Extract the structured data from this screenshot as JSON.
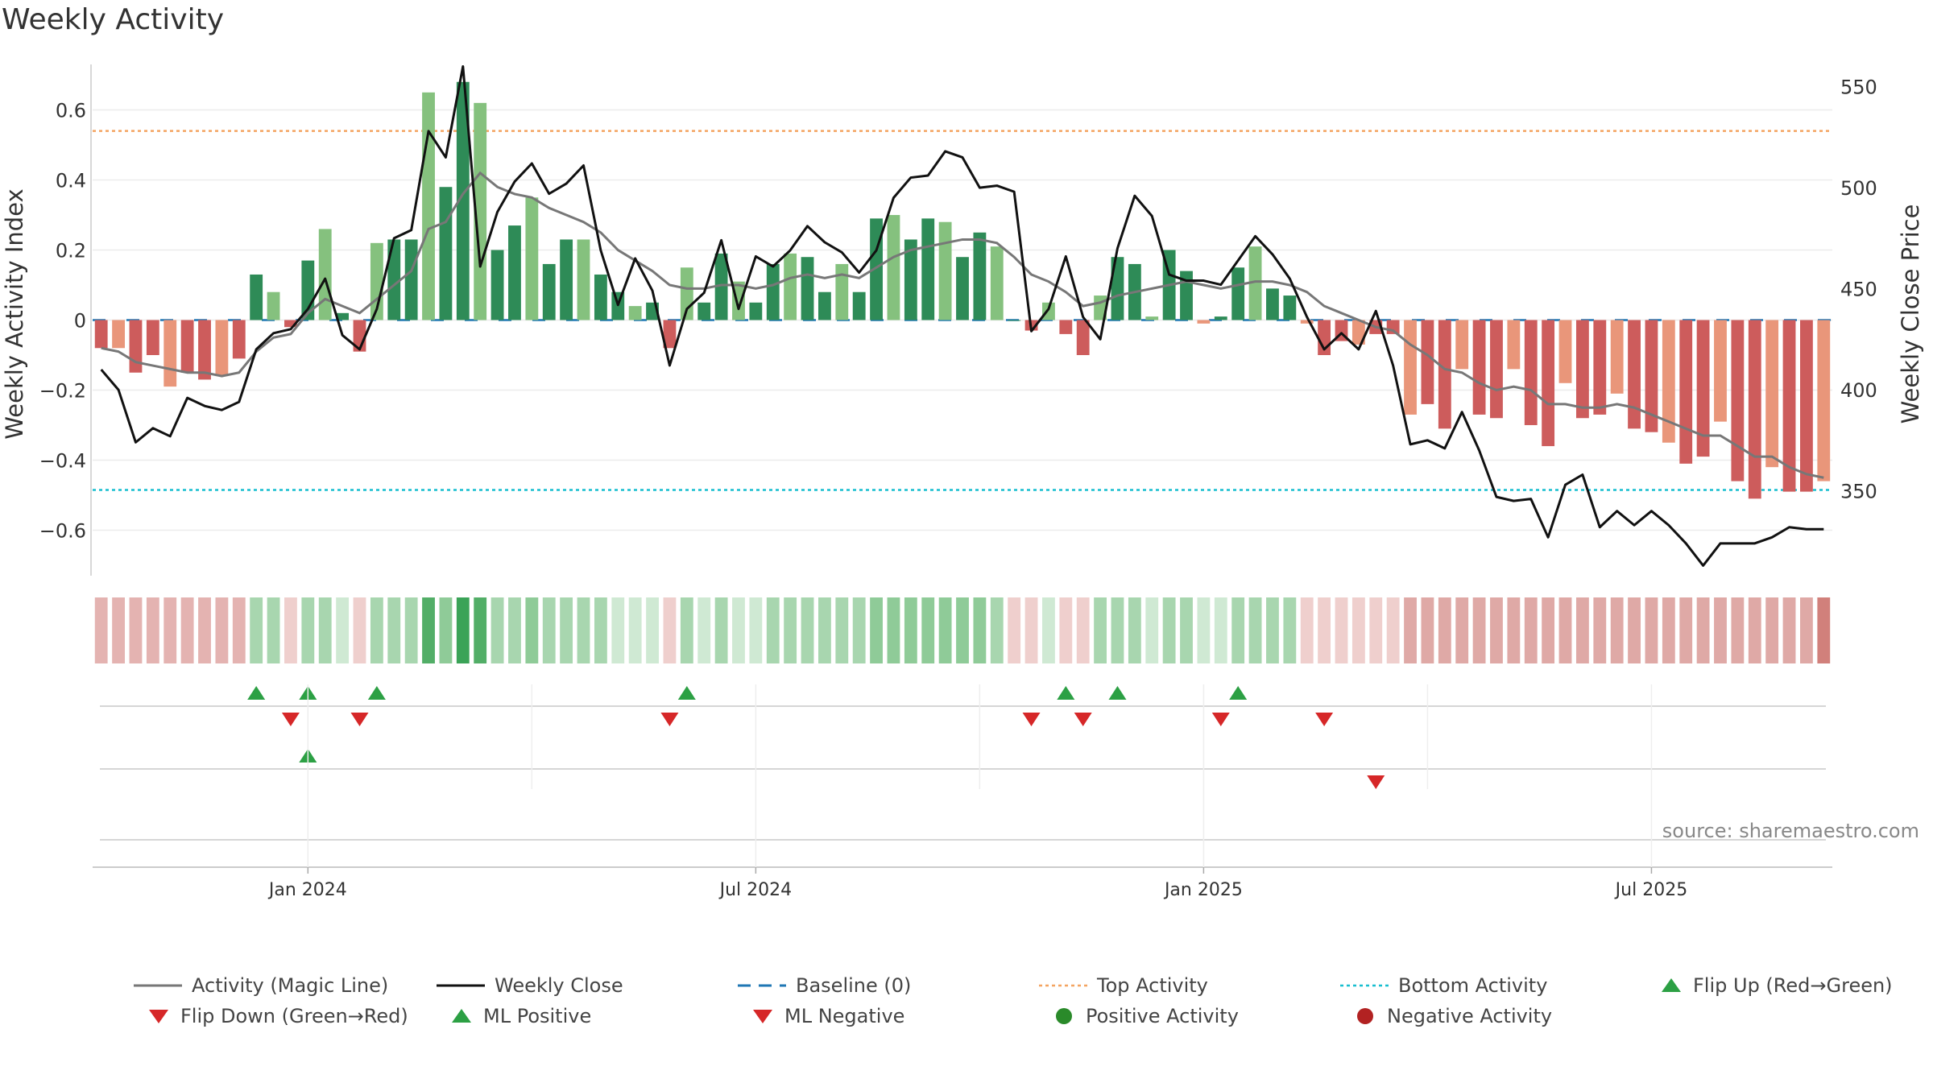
{
  "title": "Weekly Activity",
  "source": "source: sharemaestro.com",
  "colors": {
    "strong_green": "#2e8b57",
    "light_green": "#85c17e",
    "strong_red": "#cd5c5c",
    "light_red": "#e9967a",
    "magic_line": "#777777",
    "close_line": "#111111",
    "baseline": "#1f77b4",
    "top": "#f4a460",
    "bottom": "#17becf",
    "marker_green": "#2ca044",
    "marker_red": "#d62728"
  },
  "legend": {
    "magic_line": "Activity (Magic Line)",
    "weekly_close": "Weekly Close",
    "baseline": "Baseline (0)",
    "top_activity": "Top Activity",
    "bottom_activity": "Bottom Activity",
    "flip_up": "Flip Up (Red→Green)",
    "flip_down": "Flip Down (Green→Red)",
    "ml_positive": "ML Positive",
    "ml_negative": "ML Negative",
    "positive_activity": "Positive Activity",
    "negative_activity": "Negative Activity"
  },
  "chart_data": {
    "type": "bar",
    "x_tick_labels": [
      "Jan 2024",
      "Jul 2024",
      "Jan 2025",
      "Jul 2025"
    ],
    "x_tick_week_index": [
      12,
      38,
      64,
      90
    ],
    "ylabel_left": "Weekly Activity Index",
    "ylabel_right": "Weekly Close Price",
    "ylim_left": [
      -0.73,
      0.73
    ],
    "ylim_right": [
      308,
      561
    ],
    "yticks_left": [
      0.6,
      0.4,
      0.2,
      0,
      -0.2,
      -0.4,
      -0.6
    ],
    "ytick_labels_left": [
      "0.6",
      "0.4",
      "0.2",
      "0",
      "−0.2",
      "−0.4",
      "−0.6"
    ],
    "yticks_right": [
      550,
      500,
      450,
      400,
      350
    ],
    "ytick_labels_right": [
      "550",
      "500",
      "450",
      "400",
      "350"
    ],
    "top_activity": 0.54,
    "bottom_activity": -0.485,
    "baseline": 0,
    "activity": [
      -0.08,
      -0.08,
      -0.15,
      -0.1,
      -0.19,
      -0.15,
      -0.17,
      -0.16,
      -0.11,
      0.13,
      0.08,
      -0.02,
      0.17,
      0.26,
      0.02,
      -0.09,
      0.22,
      0.23,
      0.23,
      0.65,
      0.38,
      0.68,
      0.62,
      0.2,
      0.27,
      0.35,
      0.16,
      0.23,
      0.23,
      0.13,
      0.08,
      0.04,
      0.05,
      -0.08,
      0.15,
      0.05,
      0.19,
      0.11,
      0.05,
      0.16,
      0.19,
      0.18,
      0.08,
      0.16,
      0.08,
      0.29,
      0.3,
      0.23,
      0.29,
      0.28,
      0.18,
      0.25,
      0.21,
      0.0,
      -0.03,
      0.05,
      -0.04,
      -0.1,
      0.07,
      0.18,
      0.16,
      0.01,
      0.2,
      0.14,
      -0.01,
      0.01,
      0.15,
      0.21,
      0.09,
      0.07,
      -0.01,
      -0.1,
      -0.06,
      -0.07,
      -0.04,
      -0.04,
      -0.27,
      -0.24,
      -0.31,
      -0.14,
      -0.27,
      -0.28,
      -0.14,
      -0.3,
      -0.36,
      -0.18,
      -0.28,
      -0.27,
      -0.21,
      -0.31,
      -0.32,
      -0.35,
      -0.41,
      -0.39,
      -0.29,
      -0.46,
      -0.51,
      -0.42,
      -0.49,
      -0.49,
      -0.46
    ],
    "magic_line": [
      -0.08,
      -0.09,
      -0.12,
      -0.13,
      -0.14,
      -0.15,
      -0.15,
      -0.16,
      -0.15,
      -0.09,
      -0.05,
      -0.04,
      0.02,
      0.06,
      0.04,
      0.02,
      0.06,
      0.1,
      0.14,
      0.26,
      0.28,
      0.36,
      0.42,
      0.38,
      0.36,
      0.35,
      0.32,
      0.3,
      0.28,
      0.25,
      0.2,
      0.17,
      0.14,
      0.1,
      0.09,
      0.09,
      0.1,
      0.1,
      0.09,
      0.1,
      0.12,
      0.13,
      0.12,
      0.13,
      0.12,
      0.15,
      0.18,
      0.2,
      0.21,
      0.22,
      0.23,
      0.23,
      0.22,
      0.18,
      0.13,
      0.11,
      0.08,
      0.04,
      0.05,
      0.07,
      0.08,
      0.09,
      0.1,
      0.11,
      0.1,
      0.09,
      0.1,
      0.11,
      0.11,
      0.1,
      0.08,
      0.04,
      0.02,
      0.0,
      -0.02,
      -0.03,
      -0.07,
      -0.1,
      -0.14,
      -0.15,
      -0.18,
      -0.2,
      -0.19,
      -0.2,
      -0.24,
      -0.24,
      -0.25,
      -0.25,
      -0.24,
      -0.25,
      -0.27,
      -0.29,
      -0.31,
      -0.33,
      -0.33,
      -0.36,
      -0.39,
      -0.39,
      -0.42,
      -0.44,
      -0.45
    ],
    "weekly_close": [
      410,
      400,
      374,
      381,
      377,
      396,
      392,
      390,
      394,
      420,
      428,
      430,
      440,
      455,
      427,
      420,
      440,
      475,
      479,
      528,
      515,
      560,
      461,
      488,
      503,
      512,
      497,
      502,
      511,
      469,
      442,
      465,
      449,
      412,
      440,
      448,
      474,
      440,
      466,
      461,
      469,
      481,
      473,
      468,
      458,
      469,
      495,
      505,
      506,
      518,
      515,
      500,
      501,
      498,
      429,
      440,
      466,
      436,
      425,
      470,
      496,
      486,
      457,
      454,
      454,
      452,
      464,
      476,
      467,
      455,
      436,
      420,
      428,
      420,
      439,
      412,
      373,
      375,
      371,
      389,
      370,
      347,
      345,
      346,
      327,
      353,
      358,
      332,
      340,
      333,
      340,
      333,
      324,
      313,
      324,
      324,
      324,
      327,
      332,
      331,
      331
    ],
    "heat_strip_levels": [
      -2,
      -2,
      -2,
      -2,
      -2,
      -2,
      -2,
      -2,
      -2,
      2,
      2,
      -1,
      2,
      2,
      1,
      -1,
      2,
      2,
      2,
      4,
      3,
      5,
      4,
      2,
      2,
      3,
      2,
      2,
      2,
      2,
      1,
      1,
      1,
      -1,
      2,
      1,
      2,
      1,
      1,
      2,
      2,
      2,
      2,
      2,
      2,
      3,
      3,
      3,
      3,
      3,
      3,
      3,
      2,
      -1,
      -1,
      1,
      -1,
      -1,
      2,
      2,
      2,
      1,
      2,
      2,
      1,
      1,
      2,
      2,
      2,
      2,
      -1,
      -1,
      -1,
      -1,
      -1,
      -1,
      -3,
      -3,
      -3,
      -3,
      -3,
      -3,
      -3,
      -3,
      -3,
      -3,
      -3,
      -3,
      -3,
      -3,
      -3,
      -3,
      -3,
      -3,
      -3,
      -3,
      -3,
      -3,
      -3,
      -3,
      -4
    ],
    "flip_up_weeks": [
      9,
      12,
      16,
      34,
      56,
      59,
      66
    ],
    "flip_down_weeks": [
      11,
      15,
      33,
      54,
      57,
      65,
      71
    ],
    "ml_positive_weeks": [
      12
    ],
    "ml_negative_weeks": [
      74
    ]
  }
}
